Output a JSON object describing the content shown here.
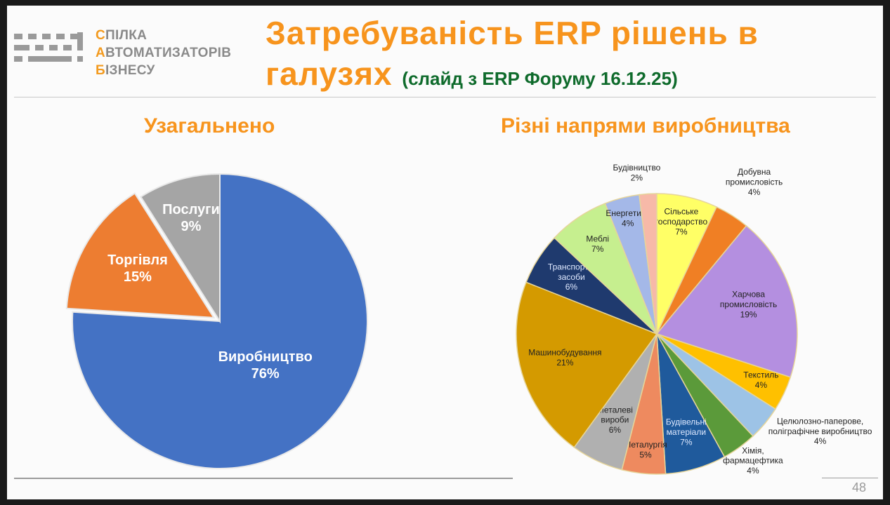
{
  "logo": {
    "lines": [
      {
        "first": "С",
        "rest": "ПІЛКА"
      },
      {
        "first": "А",
        "rest": "ВТОМАТИЗАТОРІВ"
      },
      {
        "first": "Б",
        "rest": "ІЗНЕСУ"
      }
    ]
  },
  "header": {
    "title_line1": "Затребуваність ERP рішень в",
    "title_line2": "галузях",
    "subtitle": "(слайд з ERP Форуму 16.12.25)"
  },
  "page_number": "48",
  "colors": {
    "accent": "#f7941d",
    "subtitle": "#0f6b2c"
  },
  "chart_data": [
    {
      "type": "pie",
      "title": "Узагальнено",
      "start": "top",
      "direction": "clockwise",
      "slices": [
        {
          "label": "Виробництво",
          "value": 76,
          "display": "76%",
          "color": "#4472c4"
        },
        {
          "label": "Торгівля",
          "value": 15,
          "display": "15%",
          "color": "#ed7d31"
        },
        {
          "label": "Послуги",
          "value": 9,
          "display": "9%",
          "color": "#a5a5a5"
        }
      ]
    },
    {
      "type": "pie",
      "title": "Різні напрями виробництва",
      "start": "top",
      "direction": "clockwise",
      "slices": [
        {
          "label": "Сільське господарство",
          "value": 7,
          "display": "7%",
          "color": "#ffff66"
        },
        {
          "label": "Добувна промисловість",
          "value": 4,
          "display": "4%",
          "color": "#f07f24"
        },
        {
          "label": "Харчова промисловість",
          "value": 19,
          "display": "19%",
          "color": "#b48fe0"
        },
        {
          "label": "Текстиль",
          "value": 4,
          "display": "4%",
          "color": "#ffc000"
        },
        {
          "label": "Целюлозно-паперове, поліграфічне виробництво",
          "value": 4,
          "display": "4%",
          "color": "#9dc3e6"
        },
        {
          "label": "Хімія, фармацефтика",
          "value": 4,
          "display": "4%",
          "color": "#5b9a3a"
        },
        {
          "label": "Будівельні матеріали",
          "value": 7,
          "display": "7%",
          "color": "#1f5a9c"
        },
        {
          "label": "Металургія",
          "value": 5,
          "display": "5%",
          "color": "#ee8a5f"
        },
        {
          "label": "Металеві вироби",
          "value": 6,
          "display": "6%",
          "color": "#b0b0b0"
        },
        {
          "label": "Машинобудування",
          "value": 21,
          "display": "21%",
          "color": "#d49a00"
        },
        {
          "label": "Транспортні засоби",
          "value": 6,
          "display": "6%",
          "color": "#1f3a6e"
        },
        {
          "label": "Меблі",
          "value": 7,
          "display": "7%",
          "color": "#c6ef8f"
        },
        {
          "label": "Енергетика",
          "value": 4,
          "display": "4%",
          "color": "#a4b8e8"
        },
        {
          "label": "Будівництво",
          "value": 2,
          "display": "2%",
          "color": "#f7b9a8"
        }
      ]
    }
  ]
}
